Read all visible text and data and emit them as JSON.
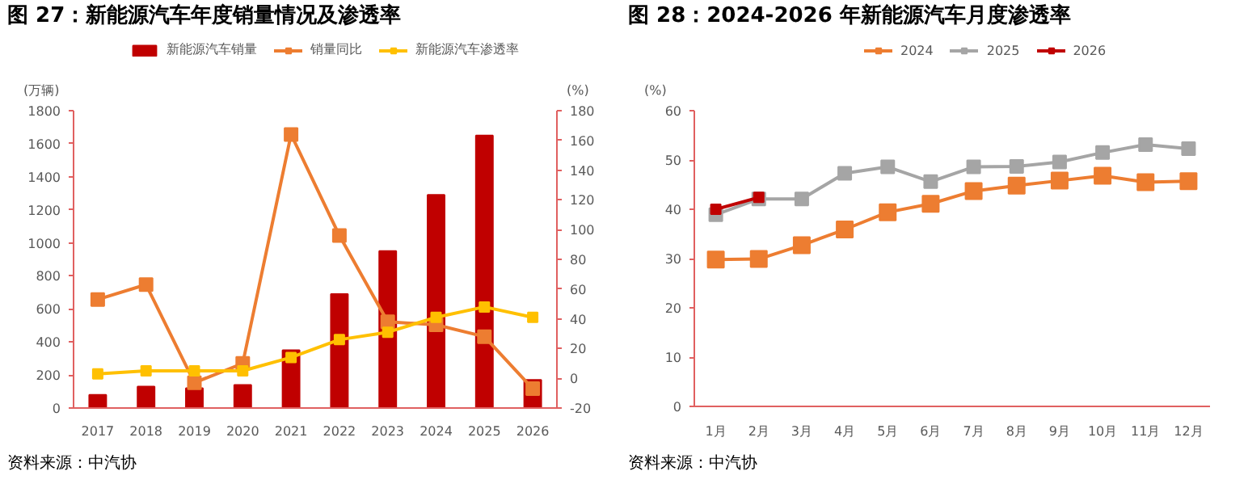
{
  "chart_data": [
    {
      "type": "bar",
      "title": "图 27：新能源汽车年度销量情况及渗透率",
      "ylabel": "(万辆)",
      "y2label": "(%)",
      "categories": [
        "2017",
        "2018",
        "2019",
        "2020",
        "2021",
        "2022",
        "2023",
        "2024",
        "2025",
        "2026"
      ],
      "series": [
        {
          "name": "新能源汽车销量",
          "color": "#c00000",
          "type": "bar",
          "values": [
            80,
            130,
            120,
            140,
            350,
            690,
            950,
            1290,
            1650,
            170
          ]
        },
        {
          "name": "销量同比",
          "color": "#ed7d31",
          "type": "line",
          "axis": "y2",
          "values": [
            53,
            63,
            -3,
            10,
            164,
            96,
            38,
            36,
            28,
            -7
          ]
        },
        {
          "name": "新能源汽车渗透率",
          "color": "#ffc000",
          "type": "line",
          "axis": "y2",
          "values": [
            3,
            5,
            5,
            5,
            14,
            26,
            31,
            41,
            48,
            41
          ]
        }
      ],
      "ylim": [
        0,
        1800
      ],
      "yticks": [
        0,
        200,
        400,
        600,
        800,
        1000,
        1200,
        1400,
        1600,
        1800
      ],
      "y2lim": [
        -20,
        180
      ],
      "y2ticks": [
        -20,
        0,
        20,
        40,
        60,
        80,
        100,
        120,
        140,
        160,
        180
      ],
      "grid": false,
      "legend": "top",
      "marker": "square",
      "annotations": [
        "资料来源：中汽协"
      ]
    },
    {
      "type": "line",
      "title": "图 28：2024-2026 年新能源汽车月度渗透率",
      "ylabel": "(%)",
      "categories": [
        "1月",
        "2月",
        "3月",
        "4月",
        "5月",
        "6月",
        "7月",
        "8月",
        "9月",
        "10月",
        "11月",
        "12月"
      ],
      "series": [
        {
          "name": "2024",
          "color": "#ed7d31",
          "values": [
            29.8,
            29.9,
            32.7,
            35.9,
            39.4,
            41.1,
            43.7,
            44.8,
            45.8,
            46.8,
            45.5,
            45.7
          ]
        },
        {
          "name": "2025",
          "color": "#a5a5a5",
          "values": [
            38.9,
            42.1,
            42.1,
            47.3,
            48.6,
            45.6,
            48.6,
            48.7,
            49.6,
            51.5,
            53.1,
            52.3
          ]
        },
        {
          "name": "2026",
          "color": "#c00000",
          "values": [
            40.0,
            42.4,
            null,
            null,
            null,
            null,
            null,
            null,
            null,
            null,
            null,
            null
          ]
        }
      ],
      "ylim": [
        0,
        60
      ],
      "yticks": [
        0,
        10,
        20,
        30,
        40,
        50,
        60
      ],
      "grid": false,
      "legend": "top",
      "marker": "square",
      "annotations": [
        "资料来源：中汽协"
      ]
    }
  ]
}
